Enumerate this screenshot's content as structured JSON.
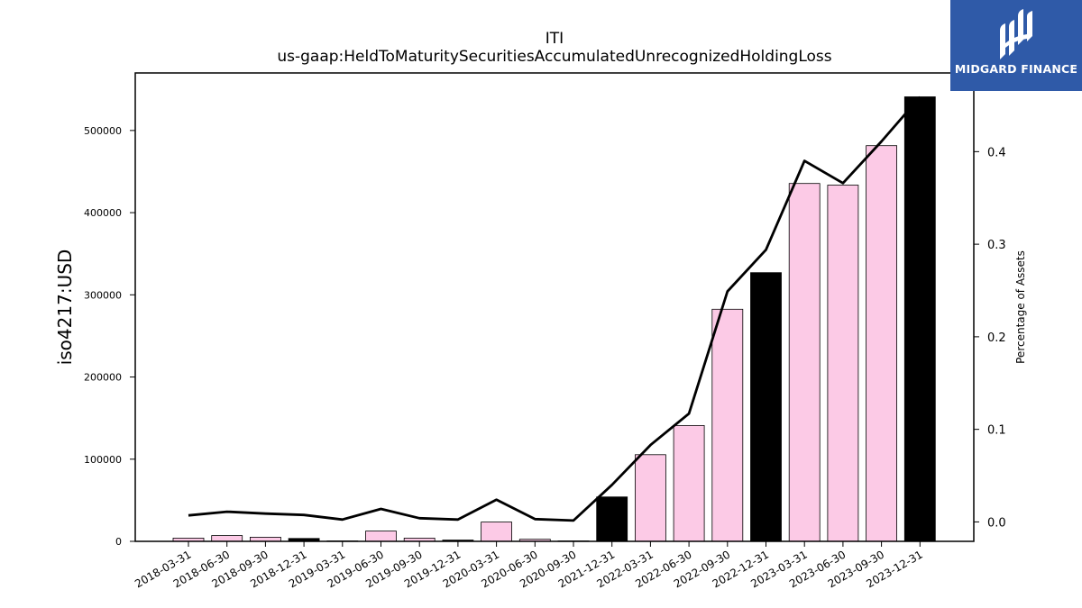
{
  "chart_data": {
    "type": "bar",
    "title": "ITI",
    "subtitle": "us-gaap:HeldToMaturitySecuritiesAccumulatedUnrecognizedHoldingLoss",
    "ylabel": "iso4217:USD",
    "y2label": "Percentage of Assets",
    "categories": [
      "2018-03-31",
      "2018-06-30",
      "2018-09-30",
      "2018-12-31",
      "2019-03-31",
      "2019-06-30",
      "2019-09-30",
      "2019-12-31",
      "2020-03-31",
      "2020-06-30",
      "2020-09-30",
      "2021-12-31",
      "2022-03-31",
      "2022-06-30",
      "2022-09-30",
      "2022-12-31",
      "2023-03-31",
      "2023-06-30",
      "2023-09-30",
      "2023-12-31"
    ],
    "values": [
      4000,
      7000,
      5000,
      3500,
      500,
      12500,
      4000,
      1500,
      23500,
      2500,
      500,
      54000,
      105500,
      141000,
      282500,
      327000,
      435500,
      433500,
      481500,
      541000
    ],
    "annual": [
      false,
      false,
      false,
      true,
      false,
      false,
      false,
      true,
      false,
      false,
      false,
      true,
      false,
      false,
      false,
      true,
      false,
      false,
      false,
      true
    ],
    "percent_of_assets": [
      0.007,
      0.011,
      0.009,
      0.0075,
      0.0025,
      0.014,
      0.004,
      0.0025,
      0.024,
      0.003,
      0.0015,
      0.04,
      0.083,
      0.117,
      0.249,
      0.294,
      0.39,
      0.366,
      0.411,
      0.459
    ],
    "ylim": [
      0,
      570000
    ],
    "y2lim": [
      -0.021,
      0.485
    ],
    "yticks": [
      "0",
      "100000",
      "200000",
      "300000",
      "400000",
      "500000"
    ],
    "y2ticks": [
      "0.0",
      "0.1",
      "0.2",
      "0.3",
      "0.4"
    ],
    "colors": {
      "quarter_bar": "#fccae6",
      "annual_bar": "#000000",
      "line": "#000000"
    }
  },
  "logo": {
    "text": "MIDGARD FINANCE"
  }
}
